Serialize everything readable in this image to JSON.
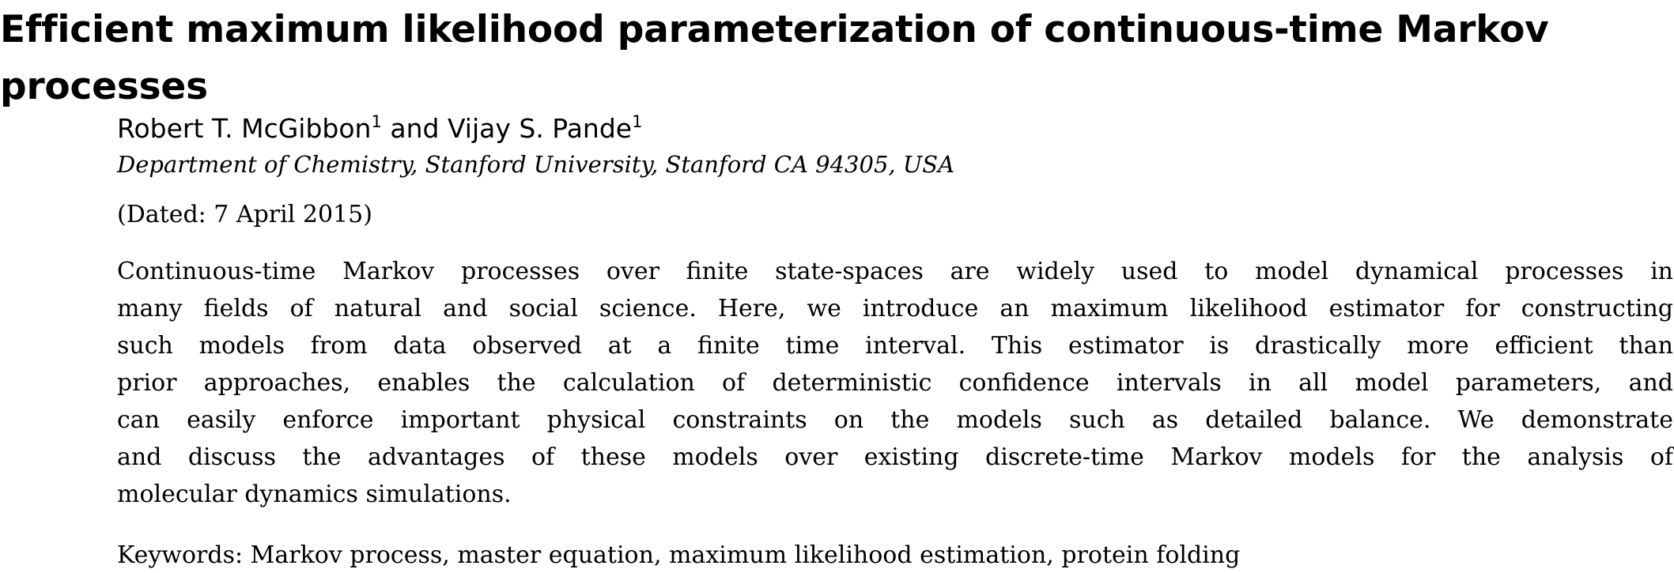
{
  "paper": {
    "title_line1": "Efficient maximum likelihood parameterization of continuous-time Markov",
    "title_line2": "processes",
    "authors": {
      "author1": "Robert T. McGibbon",
      "author1_affil": "1",
      "connector": "and",
      "author2": "Vijay S. Pande",
      "author2_affil": "1"
    },
    "affiliation": "Department of Chemistry, Stanford University, Stanford CA 94305, USA",
    "dated": "(Dated: 7 April 2015)",
    "abstract_lines": [
      "Continuous-time Markov processes over finite state-spaces are widely used to model dynamical processes in",
      "many fields of natural and social science.  Here, we introduce an maximum likelihood estimator for constructing",
      "such models from data observed at a finite time interval.  This estimator is drastically more efficient than",
      "prior approaches, enables the calculation of deterministic confidence intervals in all model parameters, and",
      "can easily enforce important physical constraints on the models such as detailed balance.  We demonstrate",
      "and discuss the advantages of these models over existing discrete-time Markov models for the analysis of",
      "molecular dynamics simulations."
    ],
    "keywords": "Keywords: Markov process, master equation, maximum likelihood estimation, protein folding"
  }
}
